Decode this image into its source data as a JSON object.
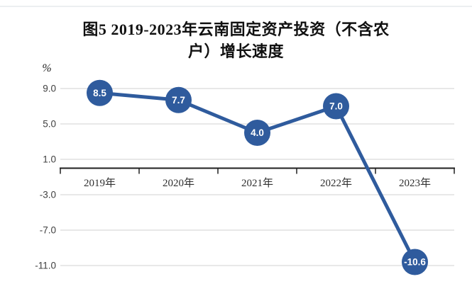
{
  "title": {
    "line1": "图5 2019-2023年云南固定资产投资（不含农",
    "line2": "户）增长速度"
  },
  "chart": {
    "unit_label": "%"
  },
  "colors": {
    "accent": "#2F5B9D",
    "gridline": "#D9D9D9",
    "axis": "#1F1F1F",
    "tick_text": "#404040",
    "data_label_text": "#FFFFFF",
    "background": "#FFFFFF"
  },
  "chart_data": {
    "type": "line",
    "title": "图5 2019-2023年云南固定资产投资（不含农户）增长速度",
    "categories": [
      "2019年",
      "2020年",
      "2021年",
      "2022年",
      "2023年"
    ],
    "values": [
      8.5,
      7.7,
      4.0,
      7.0,
      -10.6
    ],
    "data_labels": [
      "8.5",
      "7.7",
      "4.0",
      "7.0",
      "-10.6"
    ],
    "series_name": "增长速度",
    "xlabel": "",
    "ylabel": "%",
    "yticks": [
      9.0,
      5.0,
      1.0,
      -3.0,
      -7.0,
      -11.0
    ],
    "ytick_labels": [
      "9.0",
      "5.0",
      "1.0",
      "-3.0",
      "-7.0",
      "-11.0"
    ],
    "ylim": [
      -11,
      9
    ],
    "grid": true,
    "legend": false,
    "line_color": "#2F5B9D",
    "marker": "filled-circle-with-label"
  }
}
